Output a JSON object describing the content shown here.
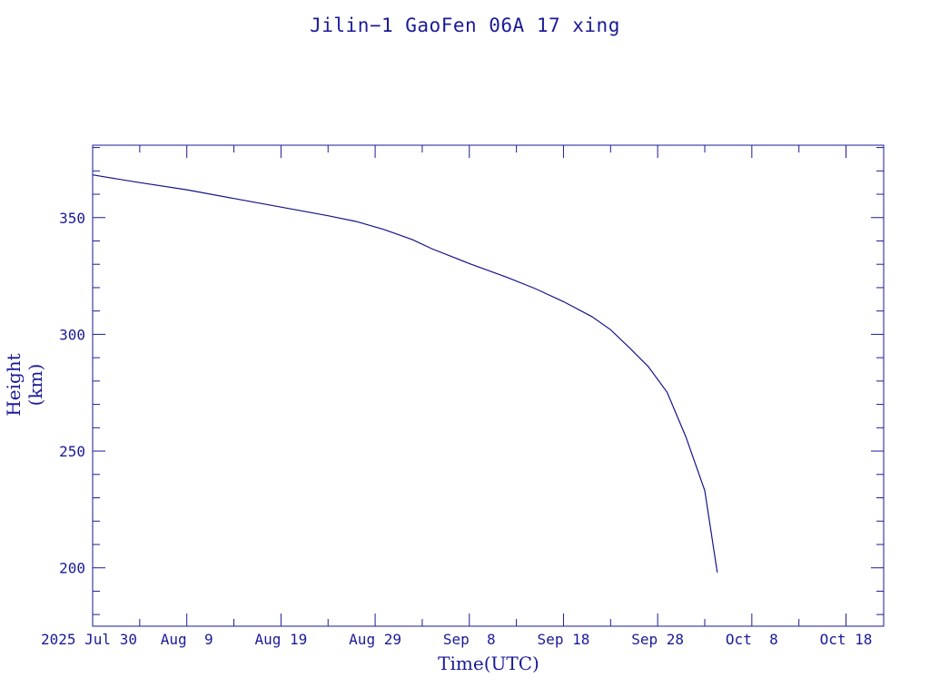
{
  "title": "Jilin−1 GaoFen 06A 17 xing",
  "colors": {
    "axis": "#1a1a99",
    "line": "#14148a",
    "background": "#ffffff"
  },
  "chart_data": {
    "type": "line",
    "title": "Jilin−1 GaoFen 06A 17 xing",
    "xlabel": "Time(UTC)",
    "ylabel": "Height (km)",
    "x_type": "date",
    "xlim": [
      "2025-07-30",
      "2025-10-22"
    ],
    "ylim": [
      175,
      381
    ],
    "grid": false,
    "x_ticks": [
      {
        "date": "2025-07-30",
        "label": "Jul 30"
      },
      {
        "date": "2025-08-09",
        "label": "Aug  9"
      },
      {
        "date": "2025-08-19",
        "label": "Aug 19"
      },
      {
        "date": "2025-08-29",
        "label": "Aug 29"
      },
      {
        "date": "2025-09-08",
        "label": "Sep  8"
      },
      {
        "date": "2025-09-18",
        "label": "Sep 18"
      },
      {
        "date": "2025-09-28",
        "label": "Sep 28"
      },
      {
        "date": "2025-10-08",
        "label": "Oct  8"
      },
      {
        "date": "2025-10-18",
        "label": "Oct 18"
      }
    ],
    "year_label": "2025",
    "y_major_ticks": [
      200,
      250,
      300,
      350
    ],
    "y_minor_step": 10,
    "series": [
      {
        "x": [
          "2025-07-30",
          "2025-08-04",
          "2025-08-09",
          "2025-08-14",
          "2025-08-19",
          "2025-08-24",
          "2025-08-27",
          "2025-08-30",
          "2025-09-02",
          "2025-09-04",
          "2025-09-08",
          "2025-09-12",
          "2025-09-15",
          "2025-09-18",
          "2025-09-21",
          "2025-09-23",
          "2025-09-25",
          "2025-09-27",
          "2025-09-29",
          "2025-10-01",
          "2025-10-03",
          "2025-10-04 08:00"
        ],
        "y": [
          368.3,
          365.0,
          361.9,
          358.2,
          354.5,
          350.8,
          348.3,
          344.8,
          340.5,
          336.7,
          330.3,
          324.4,
          319.6,
          314.0,
          307.6,
          302.0,
          294.3,
          286.2,
          275.2,
          256.0,
          233.1,
          198.0
        ]
      }
    ]
  }
}
